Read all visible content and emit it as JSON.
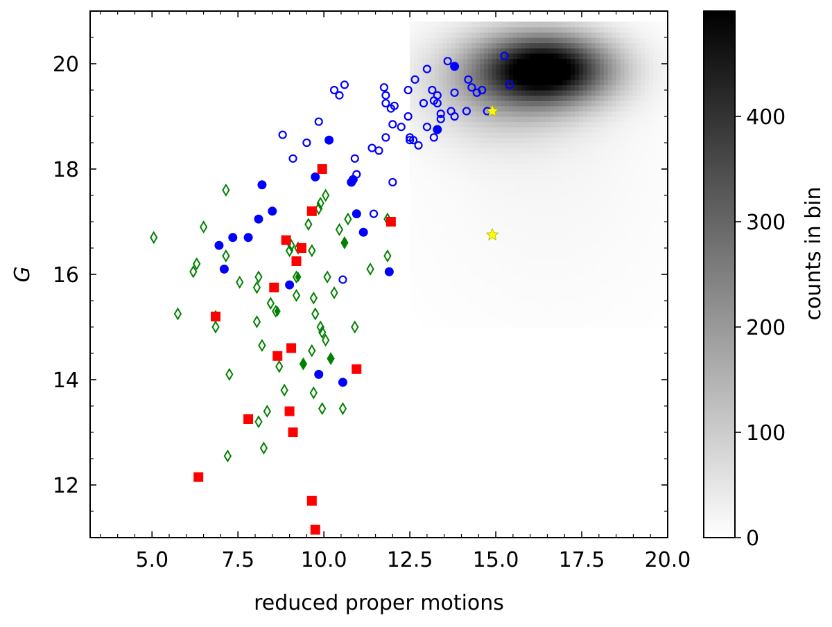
{
  "chart_data": {
    "type": "scatter",
    "title": "",
    "xlabel": "reduced proper motions",
    "ylabel": "G",
    "xlim": [
      3.2,
      20.0
    ],
    "ylim": [
      11.0,
      21.0
    ],
    "xticks": [
      5.0,
      7.5,
      10.0,
      12.5,
      15.0,
      17.5,
      20.0
    ],
    "xtick_labels": [
      "5.0",
      "7.5",
      "10.0",
      "12.5",
      "15.0",
      "17.5",
      "20.0"
    ],
    "yticks": [
      12,
      14,
      16,
      18,
      20
    ],
    "ytick_labels": [
      "12",
      "14",
      "16",
      "18",
      "20"
    ],
    "grid": false,
    "legend": "none",
    "colorbar": {
      "label": "counts in bin",
      "range": [
        0,
        500
      ],
      "ticks": [
        0,
        100,
        200,
        300,
        400
      ],
      "tick_labels": [
        "0",
        "100",
        "200",
        "300",
        "400"
      ],
      "colormap": "greys"
    },
    "background_density": {
      "description_type": "2d-histogram",
      "peak": {
        "x": 16.5,
        "y": 19.9,
        "value": 490
      },
      "components": [
        {
          "cx": 16.5,
          "cy": 19.9,
          "sx": 1.3,
          "sy": 0.45,
          "amp": 490
        },
        {
          "cx": 15.2,
          "cy": 19.6,
          "sx": 1.6,
          "sy": 0.7,
          "amp": 140
        },
        {
          "cx": 16.5,
          "cy": 18.5,
          "sx": 2.6,
          "sy": 2.2,
          "amp": 18
        }
      ],
      "xrange": [
        12.5,
        20.0
      ],
      "yrange": [
        15.0,
        20.8
      ]
    },
    "series": [
      {
        "marker": "circle-open",
        "color": "#0000ff",
        "points": [
          [
            13.6,
            20.05
          ],
          [
            15.25,
            20.15
          ],
          [
            15.4,
            19.6
          ],
          [
            14.2,
            19.7
          ],
          [
            14.3,
            19.55
          ],
          [
            14.45,
            19.45
          ],
          [
            14.6,
            19.5
          ],
          [
            13.8,
            19.45
          ],
          [
            13.15,
            19.5
          ],
          [
            13.3,
            19.4
          ],
          [
            13.2,
            19.3
          ],
          [
            13.3,
            19.25
          ],
          [
            13.4,
            19.05
          ],
          [
            13.4,
            18.95
          ],
          [
            13.7,
            19.1
          ],
          [
            13.8,
            19.0
          ],
          [
            14.15,
            19.1
          ],
          [
            14.75,
            19.1
          ],
          [
            12.65,
            19.7
          ],
          [
            12.9,
            19.25
          ],
          [
            13.0,
            19.9
          ],
          [
            12.45,
            19.5
          ],
          [
            11.75,
            19.55
          ],
          [
            11.8,
            19.4
          ],
          [
            11.8,
            19.25
          ],
          [
            11.95,
            19.15
          ],
          [
            12.05,
            19.2
          ],
          [
            12.45,
            19.0
          ],
          [
            13.0,
            18.8
          ],
          [
            13.2,
            18.6
          ],
          [
            12.25,
            18.8
          ],
          [
            12.0,
            18.85
          ],
          [
            11.8,
            18.6
          ],
          [
            12.5,
            18.6
          ],
          [
            12.6,
            18.55
          ],
          [
            12.75,
            18.45
          ],
          [
            12.5,
            18.55
          ],
          [
            11.4,
            18.4
          ],
          [
            11.6,
            18.35
          ],
          [
            10.9,
            18.2
          ],
          [
            10.3,
            19.5
          ],
          [
            10.45,
            19.4
          ],
          [
            10.6,
            19.6
          ],
          [
            9.85,
            18.9
          ],
          [
            9.5,
            18.5
          ],
          [
            8.8,
            18.65
          ],
          [
            9.1,
            18.2
          ],
          [
            10.95,
            17.9
          ],
          [
            12.0,
            17.75
          ],
          [
            11.45,
            17.15
          ],
          [
            10.55,
            15.9
          ]
        ]
      },
      {
        "marker": "circle-filled",
        "color": "#0000ff",
        "points": [
          [
            13.8,
            19.95
          ],
          [
            13.3,
            18.75
          ],
          [
            10.15,
            18.55
          ],
          [
            9.75,
            17.85
          ],
          [
            10.85,
            17.8
          ],
          [
            10.8,
            17.75
          ],
          [
            8.2,
            17.7
          ],
          [
            8.5,
            17.2
          ],
          [
            8.1,
            17.05
          ],
          [
            10.95,
            17.15
          ],
          [
            7.35,
            16.7
          ],
          [
            7.8,
            16.7
          ],
          [
            6.95,
            16.55
          ],
          [
            11.15,
            16.8
          ],
          [
            7.1,
            16.1
          ],
          [
            9.0,
            15.8
          ],
          [
            11.9,
            16.05
          ],
          [
            9.85,
            14.1
          ],
          [
            10.55,
            13.95
          ]
        ]
      },
      {
        "marker": "diamond-open",
        "color": "#008000",
        "points": [
          [
            5.05,
            16.7
          ],
          [
            6.5,
            16.9
          ],
          [
            7.15,
            17.6
          ],
          [
            7.15,
            16.35
          ],
          [
            6.3,
            16.2
          ],
          [
            6.2,
            16.05
          ],
          [
            7.55,
            15.85
          ],
          [
            8.1,
            15.95
          ],
          [
            8.05,
            15.75
          ],
          [
            8.45,
            15.45
          ],
          [
            8.6,
            15.3
          ],
          [
            5.75,
            15.25
          ],
          [
            6.85,
            15.2
          ],
          [
            6.85,
            15.0
          ],
          [
            8.05,
            15.1
          ],
          [
            8.2,
            14.65
          ],
          [
            8.7,
            14.25
          ],
          [
            7.25,
            14.1
          ],
          [
            8.85,
            13.8
          ],
          [
            8.35,
            13.4
          ],
          [
            8.1,
            13.2
          ],
          [
            7.2,
            12.55
          ],
          [
            8.25,
            12.7
          ],
          [
            9.0,
            16.45
          ],
          [
            9.25,
            16.5
          ],
          [
            9.65,
            16.45
          ],
          [
            9.05,
            16.55
          ],
          [
            9.2,
            15.95
          ],
          [
            9.2,
            15.6
          ],
          [
            9.7,
            15.55
          ],
          [
            9.75,
            15.25
          ],
          [
            9.9,
            15.0
          ],
          [
            9.95,
            14.9
          ],
          [
            9.65,
            14.55
          ],
          [
            10.05,
            14.75
          ],
          [
            9.4,
            14.3
          ],
          [
            10.2,
            14.4
          ],
          [
            9.7,
            13.75
          ],
          [
            9.95,
            13.45
          ],
          [
            10.55,
            13.45
          ],
          [
            9.9,
            17.35
          ],
          [
            9.85,
            17.25
          ],
          [
            10.05,
            17.5
          ],
          [
            9.55,
            16.95
          ],
          [
            10.45,
            16.85
          ],
          [
            10.6,
            16.6
          ],
          [
            10.7,
            17.05
          ],
          [
            10.1,
            15.95
          ],
          [
            10.3,
            15.65
          ],
          [
            10.9,
            15.0
          ],
          [
            11.35,
            16.1
          ],
          [
            11.85,
            16.35
          ],
          [
            11.85,
            17.05
          ]
        ]
      },
      {
        "marker": "diamond-filled",
        "color": "#008000",
        "points": [
          [
            10.6,
            16.6
          ],
          [
            9.25,
            15.95
          ],
          [
            8.65,
            15.3
          ],
          [
            9.4,
            14.3
          ],
          [
            10.2,
            14.4
          ]
        ]
      },
      {
        "marker": "square-filled",
        "color": "#ff0000",
        "points": [
          [
            9.95,
            18.0
          ],
          [
            9.65,
            17.2
          ],
          [
            11.95,
            17.0
          ],
          [
            8.9,
            16.65
          ],
          [
            9.35,
            16.5
          ],
          [
            9.2,
            16.25
          ],
          [
            8.55,
            15.75
          ],
          [
            6.85,
            15.2
          ],
          [
            9.05,
            14.6
          ],
          [
            8.65,
            14.45
          ],
          [
            10.95,
            14.2
          ],
          [
            7.8,
            13.25
          ],
          [
            9.0,
            13.4
          ],
          [
            9.1,
            13.0
          ],
          [
            6.35,
            12.15
          ],
          [
            9.65,
            11.7
          ],
          [
            9.75,
            11.15
          ]
        ]
      },
      {
        "marker": "star-filled",
        "color": "#ffff00",
        "points": [
          [
            14.9,
            19.1
          ],
          [
            14.9,
            16.75
          ]
        ]
      }
    ]
  }
}
